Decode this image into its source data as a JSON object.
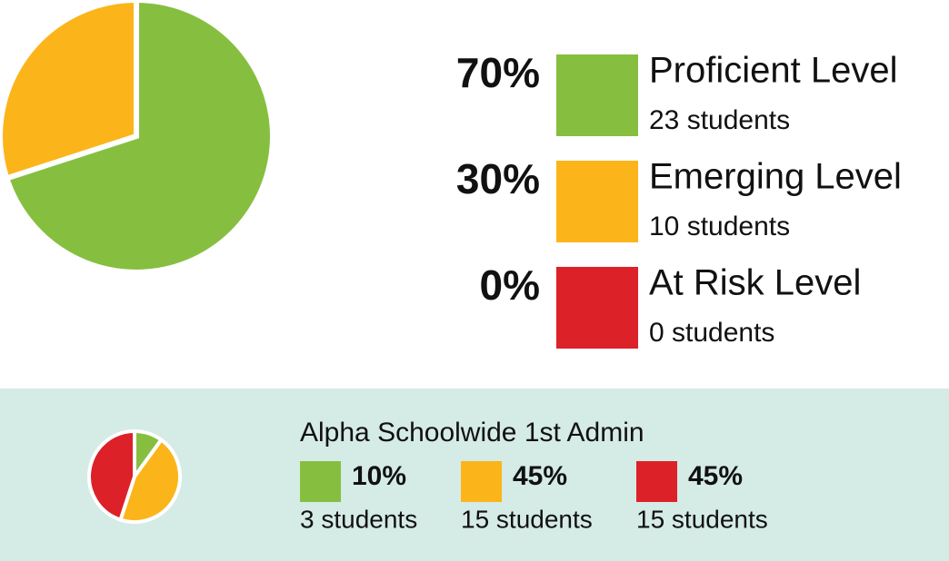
{
  "chart_data": [
    {
      "type": "pie",
      "categories": [
        "Proficient Level",
        "Emerging Level",
        "At Risk Level"
      ],
      "values": [
        70,
        30,
        0
      ],
      "value_labels": [
        "70%",
        "30%",
        "0%"
      ],
      "counts": [
        "23 students",
        "10 students",
        "0 students"
      ],
      "colors": [
        "#86bf40",
        "#fbb51a",
        "#dc2128"
      ]
    },
    {
      "type": "pie",
      "title": "Alpha Schoolwide 1st Admin",
      "values": [
        10,
        45,
        45
      ],
      "value_labels": [
        "10%",
        "45%",
        "45%"
      ],
      "counts": [
        "3 students",
        "15 students",
        "15 students"
      ],
      "colors": [
        "#86bf40",
        "#fbb51a",
        "#dc2128"
      ]
    }
  ]
}
